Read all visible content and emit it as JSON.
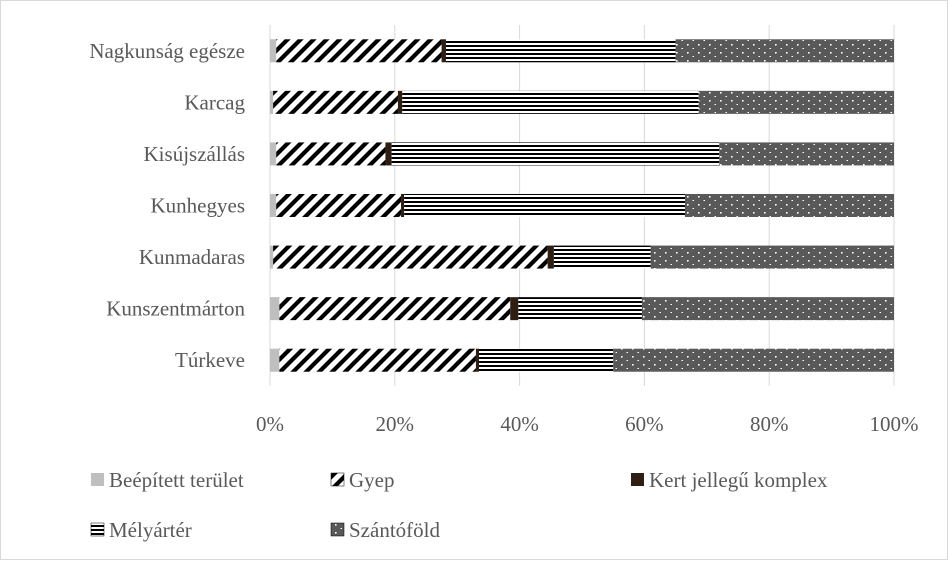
{
  "chart_data": {
    "type": "bar",
    "orientation": "horizontal",
    "stacked": "percent",
    "categories": [
      "Nagkunság egésze",
      "Karcag",
      "Kisújszállás",
      "Kunhegyes",
      "Kunmadaras",
      "Kunszentmárton",
      "Túrkeve"
    ],
    "series": [
      {
        "name": "Beépített terület",
        "color": "#bfbfbf",
        "pattern": "solid",
        "values": [
          1,
          0.5,
          1,
          1,
          0.5,
          1.5,
          1.5
        ]
      },
      {
        "name": "Gyep",
        "color": "#000000",
        "pattern": "diagonal-stripes",
        "values": [
          26.5,
          20,
          17.5,
          20,
          44,
          37,
          31.5
        ]
      },
      {
        "name": "Kert jellegű komplex",
        "color": "#2e1f12",
        "pattern": "solid",
        "values": [
          0.7,
          0.7,
          1,
          0.5,
          1,
          1.3,
          0.5
        ]
      },
      {
        "name": "Mélyártér",
        "color": "#000000",
        "pattern": "horizontal-stripes",
        "values": [
          36.8,
          47.5,
          52.5,
          45,
          15.5,
          19.8,
          21.5
        ]
      },
      {
        "name": "Szántóföld",
        "color": "#595959",
        "pattern": "dotted",
        "values": [
          35,
          31.3,
          28,
          33.5,
          39,
          40.4,
          45
        ]
      }
    ],
    "xaxis": {
      "ticks": [
        "0%",
        "20%",
        "40%",
        "60%",
        "80%",
        "100%"
      ],
      "range": [
        0,
        100
      ]
    },
    "grid": true,
    "legend": {
      "position": "bottom"
    },
    "xlabel": "",
    "ylabel": "",
    "title": ""
  }
}
